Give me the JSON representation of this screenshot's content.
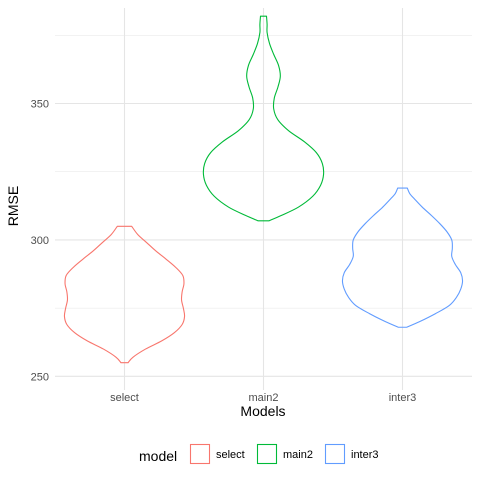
{
  "chart_data": {
    "type": "violin",
    "xlabel": "Models",
    "ylabel": "RMSE",
    "ylim": [
      245,
      385
    ],
    "yticks": [
      250,
      300,
      350
    ],
    "grid": true,
    "legend": {
      "title": "model",
      "position": "bottom"
    },
    "categories": [
      "select",
      "main2",
      "inter3"
    ],
    "series": [
      {
        "name": "select",
        "color": "#F8766D",
        "min": 255,
        "max": 305,
        "density": [
          [
            255,
            0.06
          ],
          [
            257,
            0.14
          ],
          [
            260,
            0.35
          ],
          [
            263,
            0.62
          ],
          [
            266,
            0.83
          ],
          [
            269,
            0.96
          ],
          [
            272,
            1.0
          ],
          [
            275,
            0.98
          ],
          [
            278,
            0.95
          ],
          [
            281,
            0.96
          ],
          [
            284,
            0.99
          ],
          [
            287,
            0.97
          ],
          [
            290,
            0.85
          ],
          [
            293,
            0.69
          ],
          [
            296,
            0.52
          ],
          [
            299,
            0.37
          ],
          [
            302,
            0.22
          ],
          [
            305,
            0.12
          ]
        ]
      },
      {
        "name": "main2",
        "color": "#00BA38",
        "min": 307,
        "max": 382,
        "density": [
          [
            307,
            0.09
          ],
          [
            309,
            0.3
          ],
          [
            312,
            0.58
          ],
          [
            316,
            0.82
          ],
          [
            320,
            0.95
          ],
          [
            324,
            1.0
          ],
          [
            328,
            0.98
          ],
          [
            332,
            0.88
          ],
          [
            336,
            0.68
          ],
          [
            340,
            0.42
          ],
          [
            344,
            0.24
          ],
          [
            348,
            0.17
          ],
          [
            352,
            0.18
          ],
          [
            356,
            0.24
          ],
          [
            360,
            0.28
          ],
          [
            364,
            0.25
          ],
          [
            368,
            0.17
          ],
          [
            372,
            0.1
          ],
          [
            376,
            0.06
          ],
          [
            379,
            0.06
          ],
          [
            382,
            0.05
          ]
        ]
      },
      {
        "name": "inter3",
        "color": "#619CFF",
        "min": 268,
        "max": 319,
        "density": [
          [
            268,
            0.07
          ],
          [
            270,
            0.28
          ],
          [
            273,
            0.55
          ],
          [
            276,
            0.78
          ],
          [
            279,
            0.9
          ],
          [
            282,
            0.97
          ],
          [
            285,
            1.0
          ],
          [
            288,
            0.97
          ],
          [
            291,
            0.88
          ],
          [
            294,
            0.82
          ],
          [
            297,
            0.83
          ],
          [
            300,
            0.82
          ],
          [
            303,
            0.74
          ],
          [
            306,
            0.62
          ],
          [
            309,
            0.48
          ],
          [
            312,
            0.33
          ],
          [
            315,
            0.2
          ],
          [
            317,
            0.12
          ],
          [
            319,
            0.08
          ]
        ]
      }
    ]
  }
}
